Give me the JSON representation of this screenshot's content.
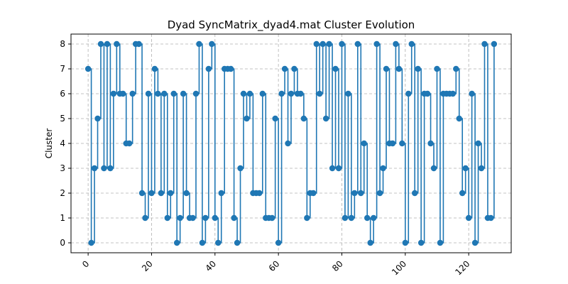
{
  "chart_data": {
    "type": "line",
    "step": "post",
    "title": "Dyad SyncMatrix_dyad4.mat Cluster Evolution",
    "xlabel": "",
    "ylabel": "Cluster",
    "xlim": [
      -5.4,
      133.4
    ],
    "ylim": [
      -0.4,
      8.4
    ],
    "grid": true,
    "x_ticks": [
      0,
      20,
      40,
      60,
      80,
      100,
      120
    ],
    "y_ticks": [
      0,
      1,
      2,
      3,
      4,
      5,
      6,
      7,
      8
    ],
    "color": "#1f77b4",
    "series": [
      {
        "name": "",
        "values": [
          7,
          0,
          3,
          5,
          8,
          3,
          8,
          3,
          6,
          8,
          6,
          6,
          4,
          4,
          6,
          8,
          8,
          2,
          1,
          6,
          2,
          7,
          6,
          2,
          6,
          1,
          2,
          6,
          0,
          1,
          6,
          2,
          1,
          1,
          6,
          8,
          0,
          1,
          7,
          8,
          1,
          0,
          2,
          7,
          7,
          7,
          1,
          0,
          3,
          6,
          5,
          6,
          2,
          2,
          2,
          6,
          1,
          1,
          1,
          5,
          0,
          6,
          7,
          4,
          6,
          7,
          6,
          6,
          5,
          1,
          2,
          2,
          8,
          6,
          8,
          5,
          8,
          3,
          7,
          3,
          8,
          1,
          6,
          1,
          2,
          8,
          2,
          4,
          1,
          0,
          1,
          8,
          2,
          3,
          7,
          4,
          4,
          8,
          7,
          4,
          0,
          6,
          8,
          2,
          7,
          0,
          6,
          6,
          4,
          3,
          7,
          0,
          6,
          6,
          6,
          6,
          7,
          5,
          2,
          3,
          1,
          6,
          0,
          4,
          3,
          8,
          1,
          1,
          8
        ]
      }
    ]
  }
}
